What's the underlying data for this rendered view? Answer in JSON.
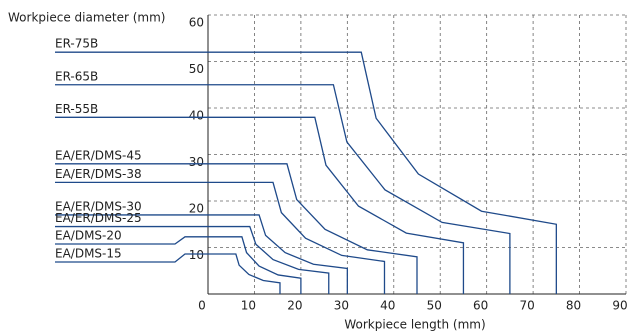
{
  "chart_data": {
    "type": "line",
    "y_label": "Workpiece diameter (mm)",
    "x_label": "Workpiece length (mm)",
    "xlim": [
      0,
      90
    ],
    "xticks": [
      0,
      10,
      20,
      30,
      40,
      50,
      60,
      70,
      80,
      90
    ],
    "ylim": [
      0,
      60
    ],
    "yticks": [
      10,
      20,
      30,
      40,
      50,
      60
    ],
    "grid": true,
    "series": [
      {
        "name": "ER-75B",
        "color": "#1f4a8a",
        "x": [
          0,
          33,
          36.2,
          45.3,
          58.9,
          75,
          75
        ],
        "values": [
          52,
          52,
          37.8,
          25.8,
          17.8,
          15,
          0
        ]
      },
      {
        "name": "ER-65B",
        "color": "#1f4a8a",
        "x": [
          0,
          27,
          29.9,
          38.1,
          50.4,
          65,
          65
        ],
        "values": [
          45,
          45,
          32.7,
          22.4,
          15.4,
          13,
          0
        ]
      },
      {
        "name": "ER-55B",
        "color": "#1f4a8a",
        "x": [
          0,
          23,
          25.4,
          32.4,
          42.7,
          55,
          55
        ],
        "values": [
          38,
          38,
          27.7,
          18.9,
          13.1,
          11,
          0
        ]
      },
      {
        "name": "EA/ER/DMS-45",
        "color": "#1f4a8a",
        "x": [
          0,
          17,
          19.1,
          25.2,
          34.3,
          45,
          45
        ],
        "values": [
          28,
          28,
          20.3,
          13.9,
          9.5,
          8,
          0
        ]
      },
      {
        "name": "EA/ER/DMS-38",
        "color": "#1f4a8a",
        "x": [
          0,
          14,
          15.8,
          21,
          28.8,
          38,
          38
        ],
        "values": [
          24,
          24,
          17.5,
          12,
          8.3,
          7,
          0
        ]
      },
      {
        "name": "EA/ER/DMS-30",
        "color": "#1f4a8a",
        "x": [
          0,
          11,
          12.4,
          16.6,
          22.7,
          30,
          30
        ],
        "values": [
          17,
          17,
          12.6,
          8.9,
          6.4,
          5.5,
          0
        ]
      },
      {
        "name": "EA/ER/DMS-25",
        "color": "#1f4a8a",
        "x": [
          0,
          9,
          10.3,
          14,
          19.5,
          26,
          26
        ],
        "values": [
          14.5,
          14.5,
          10.7,
          7.4,
          5.3,
          4.5,
          0
        ]
      },
      {
        "name": "EA/DMS-20",
        "color": "#1f4a8a",
        "x": [
          0,
          7.3,
          8.3,
          11,
          15.1,
          20,
          20
        ],
        "values": [
          12.3,
          12.3,
          8.9,
          6,
          4.1,
          3.4,
          0
        ]
      },
      {
        "name": "EA/DMS-15",
        "color": "#1f4a8a",
        "x": [
          0,
          6,
          6.7,
          8.8,
          11.9,
          15.5,
          15.5
        ],
        "values": [
          8.6,
          8.6,
          6.2,
          4.2,
          2.9,
          2.4,
          0
        ]
      }
    ]
  }
}
